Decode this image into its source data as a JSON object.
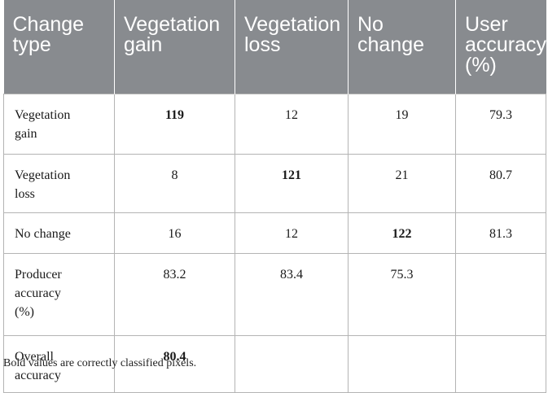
{
  "table": {
    "headers": [
      [
        "Change",
        "type"
      ],
      [
        "Vegetation",
        "gain"
      ],
      [
        "Vegetation",
        "loss"
      ],
      [
        "No",
        "change"
      ],
      [
        "User",
        "accuracy",
        "(%)"
      ]
    ],
    "rows": [
      {
        "label": [
          "Vegetation",
          "gain"
        ],
        "cells": [
          "119",
          "12",
          "19",
          "79.3"
        ]
      },
      {
        "label": [
          "Vegetation",
          "loss"
        ],
        "cells": [
          "8",
          "121",
          "21",
          "80.7"
        ]
      },
      {
        "label": [
          "No change"
        ],
        "cells": [
          "16",
          "12",
          "122",
          "81.3"
        ]
      },
      {
        "label": [
          "Producer",
          "accuracy",
          "(%)"
        ],
        "cells": [
          "83.2",
          "83.4",
          "75.3",
          ""
        ]
      },
      {
        "label": [
          "Overall",
          "accuracy"
        ],
        "cells": [
          "80.4",
          "",
          "",
          ""
        ]
      }
    ]
  },
  "footnote": "Bold values are correctly classified pixels."
}
